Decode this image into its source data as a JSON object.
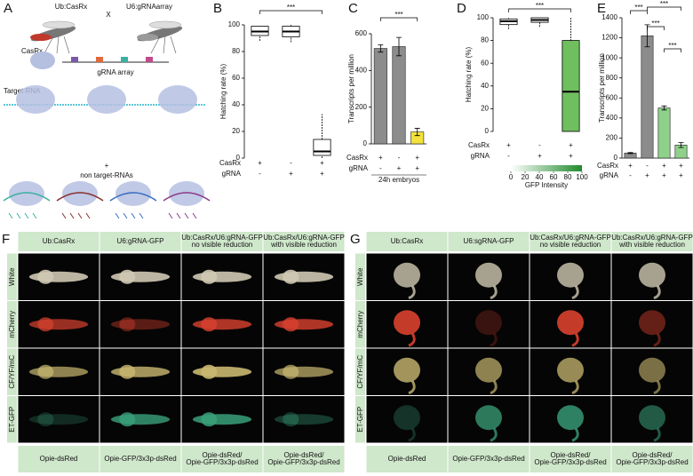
{
  "panel_a": {
    "letter": "A",
    "labels": [
      "Ub:CasRx",
      "X",
      "U6:gRNAarray",
      "CasRx",
      "gRNA array",
      "Target RNA",
      "+",
      "non target-RNAs"
    ]
  },
  "chart_data": [
    {
      "type": "box",
      "letter": "B",
      "ylabel": "Hatching rate (%)",
      "ylim": [
        0,
        100
      ],
      "yticks": [
        0,
        20,
        40,
        60,
        80,
        100
      ],
      "color": "#ffffff",
      "boxes": [
        {
          "min": 88,
          "q1": 92,
          "median": 95,
          "q3": 99,
          "max": 100
        },
        {
          "min": 87,
          "q1": 91,
          "median": 95,
          "q3": 99,
          "max": 100
        },
        {
          "min": 0,
          "q1": 2,
          "median": 5,
          "q3": 14,
          "max": 33
        }
      ],
      "row_labels": [
        "CasRx",
        "gRNA"
      ],
      "row_values": [
        [
          "+",
          "-",
          "+"
        ],
        [
          "-",
          "+",
          "+"
        ]
      ],
      "annotations": [
        "***"
      ]
    },
    {
      "type": "bar",
      "letter": "C",
      "ylabel": "Transcripts per million",
      "xlabel": "24h embryos",
      "ylim": [
        0,
        600
      ],
      "yticks": [
        0,
        200,
        400,
        600
      ],
      "values": [
        520,
        530,
        65
      ],
      "errors": [
        20,
        50,
        20
      ],
      "colors": [
        "#8c8c8c",
        "#8c8c8c",
        "#f2e23b"
      ],
      "row_labels": [
        "CasRx",
        "gRNA"
      ],
      "row_values": [
        [
          "+",
          "-",
          "+"
        ],
        [
          "-",
          "+",
          "+"
        ]
      ],
      "annotations": [
        "***"
      ]
    },
    {
      "type": "box",
      "letter": "D",
      "ylabel": "Hatching rate (%)",
      "ylim": [
        0,
        100
      ],
      "yticks": [
        0,
        20,
        40,
        60,
        80,
        100
      ],
      "colors": [
        "#ffffff",
        "#ffffff",
        "#6fbf5f"
      ],
      "boxes": [
        {
          "min": 90,
          "q1": 94,
          "median": 97,
          "q3": 99,
          "max": 100
        },
        {
          "min": 92,
          "q1": 96,
          "median": 98,
          "q3": 100,
          "max": 100
        },
        {
          "min": 0,
          "q1": 0,
          "median": 35,
          "q3": 80,
          "max": 100
        }
      ],
      "row_labels": [
        "CasRx",
        "gRNA"
      ],
      "row_values": [
        [
          "+",
          "-",
          "+"
        ],
        [
          "-",
          "+",
          "+"
        ]
      ],
      "colorbar": {
        "label": "GFP Intensity",
        "ticks": [
          0,
          20,
          40,
          60,
          80,
          100
        ]
      },
      "annotations": [
        "***"
      ]
    },
    {
      "type": "bar",
      "letter": "E",
      "ylabel": "Transcripts per million",
      "ylim": [
        0,
        1400
      ],
      "yticks": [
        0,
        200,
        400,
        600,
        800,
        1000,
        1200,
        1400
      ],
      "values": [
        50,
        1220,
        500,
        130
      ],
      "errors": [
        5,
        110,
        20,
        25
      ],
      "colors": [
        "#8c8c8c",
        "#8c8c8c",
        "#8fd18a",
        "#8fd18a"
      ],
      "row_labels": [
        "CasRx",
        "gRNA"
      ],
      "row_values": [
        [
          "+",
          "-",
          "+",
          "+"
        ],
        [
          "-",
          "+",
          "+",
          "+"
        ]
      ],
      "annotations": [
        "***",
        "***",
        "***",
        "***"
      ]
    }
  ],
  "panel_f": {
    "letter": "F",
    "columns": [
      [
        "Ub:CasRx"
      ],
      [
        "U6:gRNA-GFP"
      ],
      [
        "Ub:CasRx/U6:gRNA-GFP",
        "no visible reduction"
      ],
      [
        "Ub:CasRx/U6:gRNA-GFP",
        "with visible reduction"
      ]
    ],
    "rows": [
      "White",
      "mCherry",
      "CF/YF/mC",
      "ET-GFP"
    ],
    "footers": [
      [
        "Opie-dsRed"
      ],
      [
        "Opie-GFP/3x3p-dsRed"
      ],
      [
        "Opie-dsRed/",
        "Opie-GFP/3x3p-dsRed"
      ],
      [
        "Opie-dsRed/",
        "Opie-GFP/3x3p-dsRed"
      ]
    ]
  },
  "panel_g": {
    "letter": "G",
    "columns": [
      [
        "Ub:CasRx"
      ],
      [
        "U6:sgRNA-GFP"
      ],
      [
        "Ub:CasRx/U6:gRNA-GFP",
        "no visible reduction"
      ],
      [
        "Ub:CasRx/U6:gRNA-GFP",
        "with visible reduction"
      ]
    ],
    "rows": [
      "White",
      "mCherry",
      "CF/YF/mC",
      "ET-GFP"
    ],
    "footers": [
      [
        "Opie-dsRed"
      ],
      [
        "Opie-GFP/3x3p-dsRed"
      ],
      [
        "Opie-dsRed/",
        "Opie-GFP/3x3p-dsRed"
      ],
      [
        "Opie-dsRed/",
        "Opie-GFP/3x3p-dsRed"
      ]
    ]
  }
}
